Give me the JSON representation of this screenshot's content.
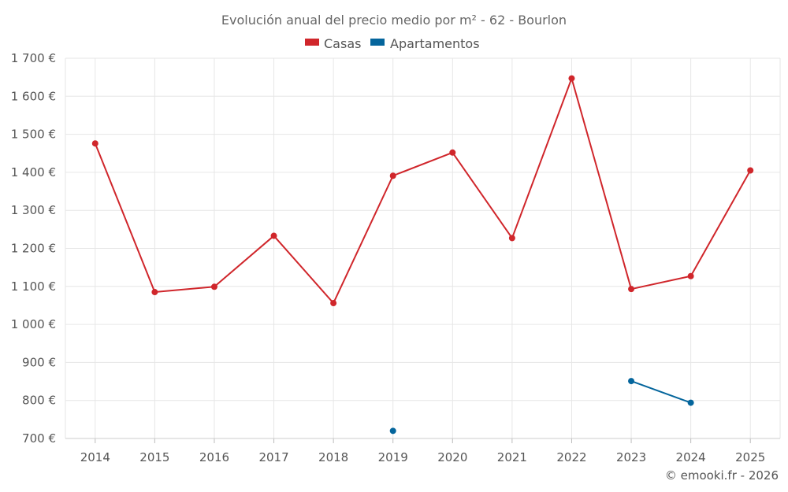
{
  "chart_data": {
    "type": "line",
    "title": "Evolución anual del precio medio por m² - 62 - Bourlon",
    "categories": [
      "2014",
      "2015",
      "2016",
      "2017",
      "2018",
      "2019",
      "2020",
      "2021",
      "2022",
      "2023",
      "2024",
      "2025"
    ],
    "series": [
      {
        "name": "Casas",
        "color": "#d0262b",
        "values": [
          1476,
          1085,
          1099,
          1233,
          1056,
          1391,
          1452,
          1227,
          1647,
          1093,
          1127,
          1405
        ]
      },
      {
        "name": "Apartamentos",
        "color": "#04659c",
        "values": [
          null,
          null,
          null,
          null,
          null,
          720,
          null,
          null,
          null,
          851,
          794,
          null
        ]
      }
    ],
    "ylim": [
      700,
      1700
    ],
    "yticks": [
      700,
      800,
      900,
      1000,
      1100,
      1200,
      1300,
      1400,
      1500,
      1600,
      1700
    ],
    "ytick_labels": [
      "700 €",
      "800 €",
      "900 €",
      "1 000 €",
      "1 100 €",
      "1 200 €",
      "1 300 €",
      "1 400 €",
      "1 500 €",
      "1 600 €",
      "1 700 €"
    ],
    "grid": true,
    "legend_position": "top-center",
    "footer": "© emooki.fr - 2026"
  }
}
